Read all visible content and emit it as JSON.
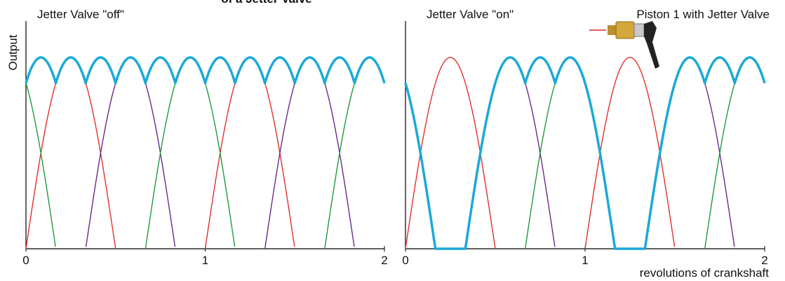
{
  "title_fragment": "of a Jetter Valve",
  "y_axis_label": "Output",
  "x_axis_label": "revolutions of crankshaft",
  "inset_caption": "Piston 1 with Jetter Valve",
  "panels": [
    {
      "label": "Jetter Valve \"off\"",
      "xlim": [
        0,
        2
      ],
      "xticks": [
        0,
        1,
        2
      ]
    },
    {
      "label": "Jetter Valve \"on\"",
      "xlim": [
        0,
        2
      ],
      "xticks": [
        0,
        1,
        2
      ]
    }
  ]
}
